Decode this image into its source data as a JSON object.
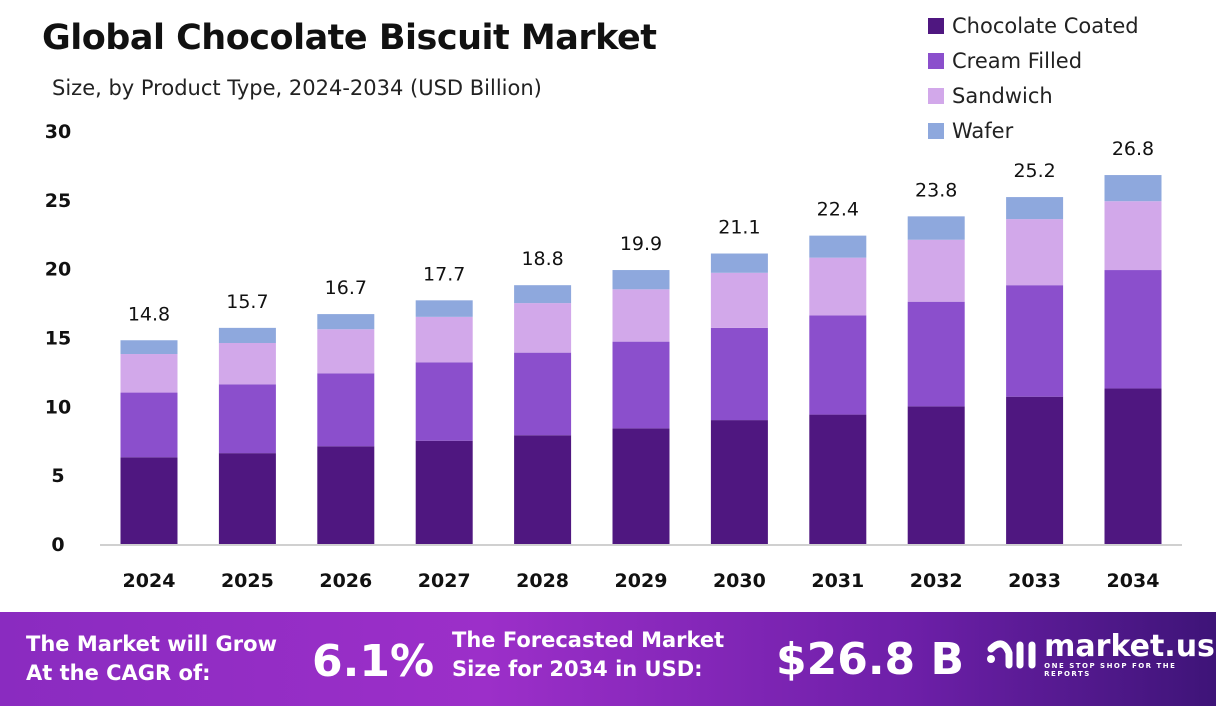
{
  "chart_data": {
    "type": "bar",
    "stacked": true,
    "title": "Global Chocolate Biscuit Market",
    "subtitle": "Size, by Product Type, 2024-2034 (USD Billion)",
    "categories": [
      "2024",
      "2025",
      "2026",
      "2027",
      "2028",
      "2029",
      "2030",
      "2031",
      "2032",
      "2033",
      "2034"
    ],
    "series": [
      {
        "name": "Chocolate Coated",
        "color": "#4f1780",
        "values": [
          6.3,
          6.6,
          7.1,
          7.5,
          7.9,
          8.4,
          9.0,
          9.4,
          10.0,
          10.7,
          11.3
        ]
      },
      {
        "name": "Cream Filled",
        "color": "#8b4fcc",
        "values": [
          4.7,
          5.0,
          5.3,
          5.7,
          6.0,
          6.3,
          6.7,
          7.2,
          7.6,
          8.1,
          8.6
        ]
      },
      {
        "name": "Sandwich",
        "color": "#d2a8ea",
        "values": [
          2.8,
          3.0,
          3.2,
          3.3,
          3.6,
          3.8,
          4.0,
          4.2,
          4.5,
          4.8,
          5.0
        ]
      },
      {
        "name": "Wafer",
        "color": "#8ea8dd",
        "values": [
          1.0,
          1.1,
          1.1,
          1.2,
          1.3,
          1.4,
          1.4,
          1.6,
          1.7,
          1.6,
          1.9
        ]
      }
    ],
    "totals": [
      "14.8",
      "15.7",
      "16.7",
      "17.7",
      "18.8",
      "19.9",
      "21.1",
      "22.4",
      "23.8",
      "25.2",
      "26.8"
    ],
    "ylim": [
      0,
      30
    ],
    "yticks": [
      "0",
      "5",
      "10",
      "15",
      "20",
      "25",
      "30"
    ],
    "legend_position": "top-right",
    "grid": false
  },
  "footer": {
    "cagr_label_1": "The Market will Grow",
    "cagr_label_2": "At the CAGR of:",
    "cagr_value": "6.1%",
    "forecast_label_1": "The Forecasted Market",
    "forecast_label_2": "Size for 2034 in USD:",
    "forecast_value": "$26.8 B",
    "logo_text": "market.us",
    "logo_tagline": "ONE STOP SHOP FOR THE REPORTS"
  }
}
